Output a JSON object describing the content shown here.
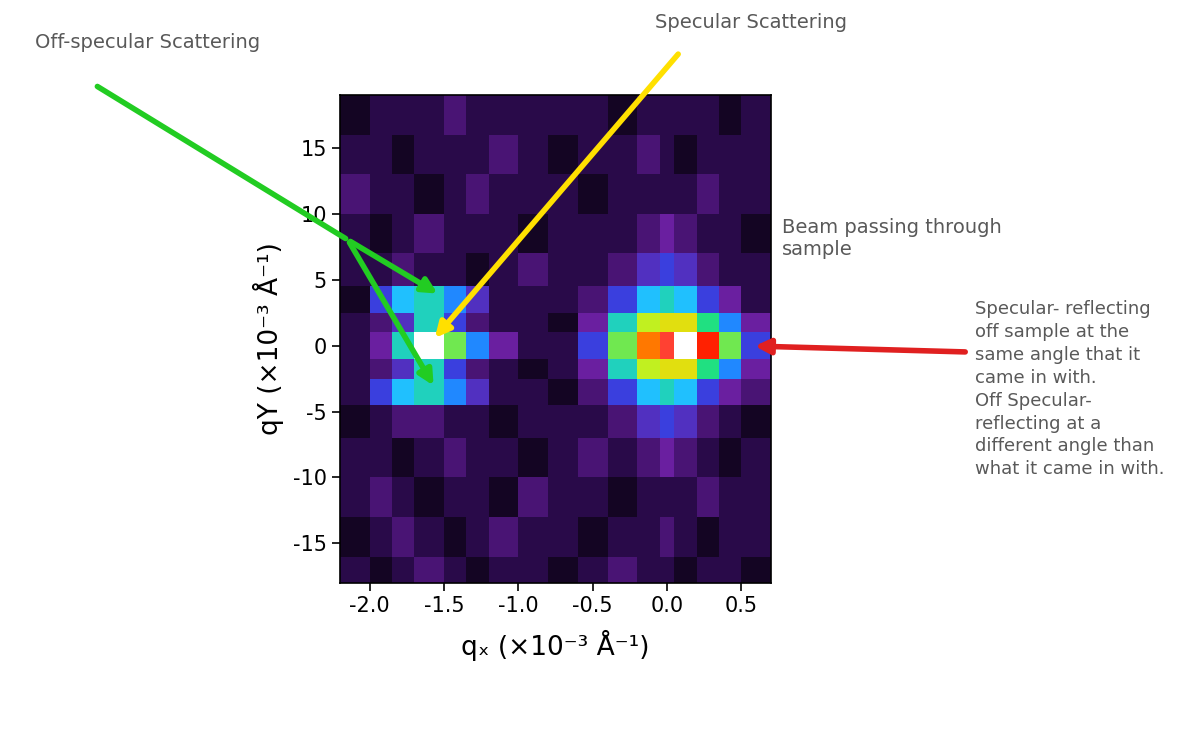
{
  "chart_data": {
    "type": "heatmap",
    "x_label": "qₓ (×10⁻³ Å⁻¹)",
    "y_label": "qY (×10⁻³ Å⁻¹)",
    "x_edges": [
      -2.2,
      -2.0,
      -1.85,
      -1.7,
      -1.5,
      -1.35,
      -1.2,
      -1.0,
      -0.8,
      -0.6,
      -0.4,
      -0.2,
      -0.05,
      0.05,
      0.2,
      0.35,
      0.5,
      0.7
    ],
    "y_edges": [
      -18,
      -16,
      -13,
      -10,
      -7,
      -4.5,
      -2.5,
      -1,
      1,
      2.5,
      4.5,
      7,
      10,
      13,
      16,
      19
    ],
    "cells": [
      [
        1,
        0.5,
        1,
        1.5,
        1,
        0.5,
        1,
        1,
        0.5,
        1,
        1.5,
        1,
        1,
        0.5,
        1,
        1,
        0.5
      ],
      [
        0.5,
        1,
        1.5,
        1,
        0.5,
        1,
        1.5,
        1,
        1,
        0.5,
        1,
        1,
        1.5,
        1,
        0.5,
        1,
        1
      ],
      [
        1,
        1.5,
        1,
        0.5,
        1,
        1,
        0.5,
        1.5,
        1,
        1,
        0.5,
        1,
        1,
        1,
        1.5,
        1,
        1
      ],
      [
        1,
        1,
        0.5,
        1,
        1.5,
        1,
        1,
        0.5,
        1,
        1.5,
        1,
        1.5,
        2,
        1.5,
        1,
        0.5,
        1
      ],
      [
        0.5,
        1,
        1.5,
        1.5,
        1,
        1,
        0.5,
        1,
        1,
        1,
        1.5,
        2.5,
        3,
        2.5,
        1.5,
        1,
        0.5
      ],
      [
        1,
        3,
        4.5,
        5,
        4,
        2.5,
        1,
        1,
        0.5,
        1.5,
        3,
        4.5,
        5,
        4.5,
        3,
        2,
        1.5
      ],
      [
        1,
        1.5,
        2.5,
        5,
        3,
        1.5,
        1,
        0.5,
        1,
        2,
        5,
        6.5,
        7,
        7,
        5.5,
        4,
        2
      ],
      [
        1,
        2,
        5,
        10,
        6,
        4,
        2,
        1,
        1,
        3,
        6,
        8,
        9,
        10,
        8.5,
        6,
        3
      ],
      [
        1,
        1.5,
        2.5,
        5,
        3,
        1.5,
        1,
        1,
        0.5,
        2,
        5,
        6.5,
        7,
        7,
        5.5,
        4,
        2
      ],
      [
        0.5,
        3,
        4.5,
        5,
        4,
        2.5,
        1,
        1,
        1,
        1.5,
        3,
        4.5,
        5,
        4.5,
        3,
        2,
        1
      ],
      [
        1,
        1,
        1.5,
        1,
        1,
        0.5,
        1,
        1.5,
        1,
        1,
        1.5,
        2.5,
        3,
        2.5,
        1.5,
        1,
        1
      ],
      [
        1,
        0.5,
        1,
        1.5,
        1,
        1,
        1,
        0.5,
        1,
        1,
        1,
        1.5,
        2,
        1.5,
        1,
        1,
        0.5
      ],
      [
        1.5,
        1,
        1,
        0.5,
        1,
        1.5,
        1,
        1,
        1,
        0.5,
        1,
        1,
        1,
        1,
        1.5,
        1,
        1
      ],
      [
        1,
        1,
        0.5,
        1,
        1,
        1,
        1.5,
        1,
        0.5,
        1,
        1,
        1.5,
        1,
        0.5,
        1,
        1,
        1
      ],
      [
        0.5,
        1,
        1,
        1,
        1.5,
        1,
        1,
        1,
        1,
        1,
        0.5,
        1,
        1,
        1,
        1,
        0.5,
        1
      ]
    ],
    "color_range": [
      0,
      10
    ],
    "xlim": [
      -2.2,
      0.7
    ],
    "ylim": [
      -18,
      19
    ],
    "xticks": [
      -2.0,
      -1.5,
      -1.0,
      -0.5,
      0.0,
      0.5
    ],
    "yticks": [
      -15,
      -10,
      -5,
      0,
      5,
      10,
      15
    ],
    "annotations": {
      "off_specular": "Off-specular Scattering",
      "specular": "Specular Scattering",
      "beam": "Beam passing through\nsample",
      "explanation": "Specular- reflecting\noff sample at the\nsame angle that it\ncame in with.\nOff Specular-\nreflecting at a\ndifferent angle than\nwhat it came in with."
    }
  }
}
